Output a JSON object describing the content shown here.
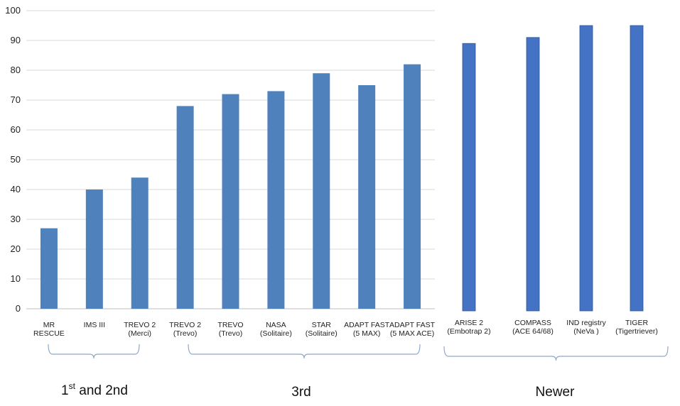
{
  "chart_data": {
    "type": "bar",
    "ylim": [
      0,
      100
    ],
    "yticks": [
      0,
      10,
      20,
      30,
      40,
      50,
      60,
      70,
      80,
      90,
      100
    ],
    "grid": true,
    "bar_color": "#4f81bd",
    "newer_bar_color": "#4472c4",
    "categories": [
      [
        "MR",
        "RESCUE"
      ],
      [
        "IMS III"
      ],
      [
        "TREVO 2",
        "(Merci)"
      ],
      [
        "TREVO 2",
        "(Trevo)"
      ],
      [
        "TREVO",
        "(Trevo)"
      ],
      [
        "NASA",
        "(Solitaire)"
      ],
      [
        "STAR",
        "(Solitaire)"
      ],
      [
        "ADAPT FAST",
        "(5 MAX)"
      ],
      [
        "ADAPT FAST",
        "(5 MAX ACE)"
      ]
    ],
    "values": [
      27,
      40,
      44,
      68,
      72,
      73,
      79,
      75,
      82
    ],
    "newer_categories": [
      [
        "ARISE 2",
        "(Embotrap 2)"
      ],
      [
        "COMPASS",
        "(ACE 64/68)"
      ],
      [
        "IND registry",
        "(NeVa )"
      ],
      [
        "TIGER",
        "(Tigertriever)"
      ]
    ],
    "newer_values": [
      89,
      91,
      95,
      95
    ],
    "groups": [
      {
        "label": "1",
        "sup": "st",
        "rest": " and 2nd"
      },
      {
        "label": "3rd"
      },
      {
        "label": "Newer"
      }
    ]
  }
}
